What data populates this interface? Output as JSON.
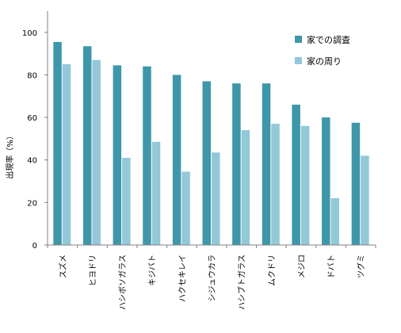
{
  "chart_data": {
    "type": "bar",
    "title": "",
    "xlabel": "",
    "ylabel": "出現率（%）",
    "ylim": [
      0,
      110
    ],
    "yticks": [
      0,
      20,
      40,
      60,
      80,
      100
    ],
    "grid": false,
    "legend_position": "top-right",
    "categories": [
      "スズメ",
      "ヒヨドリ",
      "ハシボソガラス",
      "キジバト",
      "ハクセキレイ",
      "シジュウカラ",
      "ハシブトガラス",
      "ムクドリ",
      "メジロ",
      "ドバト",
      "ツグミ"
    ],
    "series": [
      {
        "name": "家での調査",
        "color": "#3e97a8",
        "values": [
          95.5,
          93.5,
          84.5,
          84,
          80,
          77,
          76,
          76,
          66,
          60,
          57.5
        ]
      },
      {
        "name": "家の周り",
        "color": "#93c8d8",
        "values": [
          85,
          87,
          41,
          48.5,
          34.5,
          43.5,
          54,
          57,
          56,
          22,
          42
        ]
      }
    ]
  }
}
